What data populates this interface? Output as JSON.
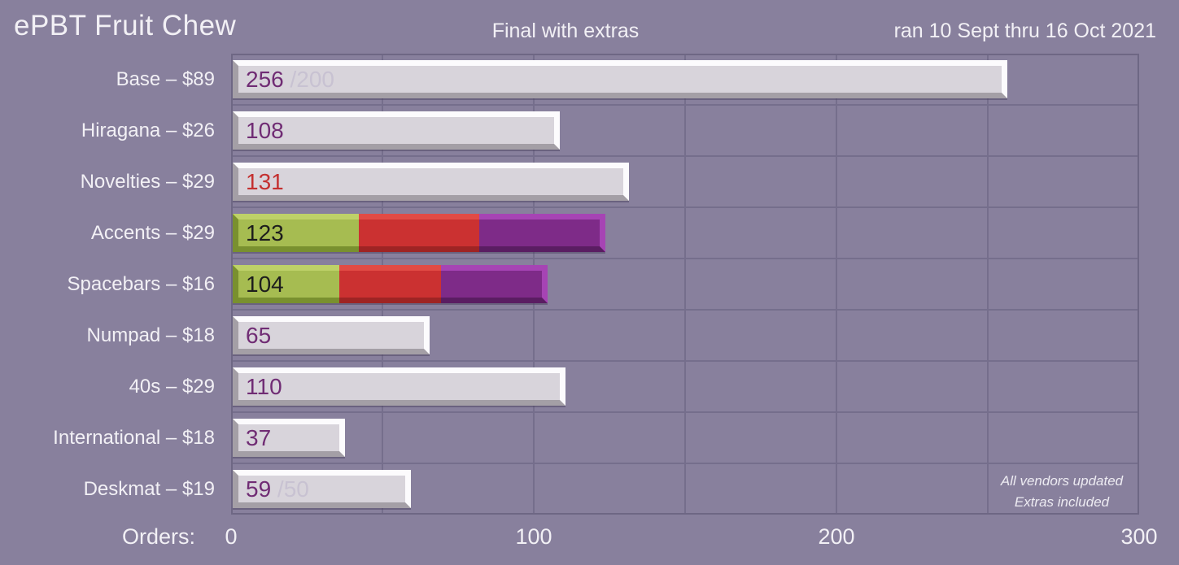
{
  "header": {
    "title": "ePBT Fruit Chew",
    "subtitle": "Final with extras",
    "date_range": "ran 10 Sept thru 16 Oct 2021"
  },
  "axis": {
    "label": "Orders:",
    "ticks": [
      "0",
      "100",
      "200",
      "300"
    ],
    "max": 300,
    "gridline_step": 50
  },
  "note": {
    "lines": [
      "All vendors updated",
      "Extras included"
    ]
  },
  "colors": {
    "background": "#88809D",
    "gridline": "#756E8C",
    "plot_border": "#6E6784",
    "heading_text": "#F2F0F5",
    "value_purple": "#702C74",
    "value_red": "#C43030",
    "value_black": "#1D1D1D",
    "value_pale": "#C8C2D2",
    "segments": {
      "gray": {
        "fill": "#D8D4DB",
        "light": "#FCFBFD",
        "dark": "#A49FA6"
      },
      "green": {
        "fill": "#A6BC51",
        "light": "#BED168",
        "dark": "#79902F"
      },
      "red": {
        "fill": "#CB3131",
        "light": "#E24B45",
        "dark": "#9E2424"
      },
      "purple": {
        "fill": "#7E2B88",
        "light": "#A644B4",
        "dark": "#5A1D62"
      }
    }
  },
  "chart_data": {
    "type": "bar",
    "orientation": "horizontal",
    "title": "ePBT Fruit Chew",
    "subtitle": "Final with extras",
    "annotation": "ran 10 Sept thru 16 Oct 2021",
    "xlabel": "Orders:",
    "xlim": [
      0,
      300
    ],
    "xticks": [
      0,
      100,
      200,
      300
    ],
    "gridlines_every": 50,
    "legend": "none",
    "bars": [
      {
        "category": "Base – $89",
        "value": 256,
        "cap": 200,
        "display": "256",
        "cap_display": "/200",
        "value_color": "value_purple",
        "segments": [
          {
            "color": "gray",
            "fraction": 1
          }
        ]
      },
      {
        "category": "Hiragana – $26",
        "value": 108,
        "display": "108",
        "value_color": "value_purple",
        "segments": [
          {
            "color": "gray",
            "fraction": 1
          }
        ]
      },
      {
        "category": "Novelties – $29",
        "value": 131,
        "display": "131",
        "value_color": "value_red",
        "segments": [
          {
            "color": "gray",
            "fraction": 1
          }
        ]
      },
      {
        "category": "Accents – $29",
        "value": 123,
        "display": "123",
        "value_color": "value_black",
        "segments": [
          {
            "color": "green",
            "fraction": 0.3334
          },
          {
            "color": "red",
            "fraction": 0.3333
          },
          {
            "color": "purple",
            "fraction": 0.3333
          }
        ]
      },
      {
        "category": "Spacebars – $16",
        "value": 104,
        "display": "104",
        "value_color": "value_black",
        "segments": [
          {
            "color": "green",
            "fraction": 0.3334
          },
          {
            "color": "red",
            "fraction": 0.3333
          },
          {
            "color": "purple",
            "fraction": 0.3333
          }
        ]
      },
      {
        "category": "Numpad – $18",
        "value": 65,
        "display": "65",
        "value_color": "value_purple",
        "segments": [
          {
            "color": "gray",
            "fraction": 1
          }
        ]
      },
      {
        "category": "40s – $29",
        "value": 110,
        "display": "110",
        "value_color": "value_purple",
        "segments": [
          {
            "color": "gray",
            "fraction": 1
          }
        ]
      },
      {
        "category": "International – $18",
        "value": 37,
        "display": "37",
        "value_color": "value_purple",
        "segments": [
          {
            "color": "gray",
            "fraction": 1
          }
        ]
      },
      {
        "category": "Deskmat – $19",
        "value": 59,
        "cap": 50,
        "display": "59",
        "cap_display": "/50",
        "value_color": "value_purple",
        "segments": [
          {
            "color": "gray",
            "fraction": 1
          }
        ]
      }
    ]
  }
}
